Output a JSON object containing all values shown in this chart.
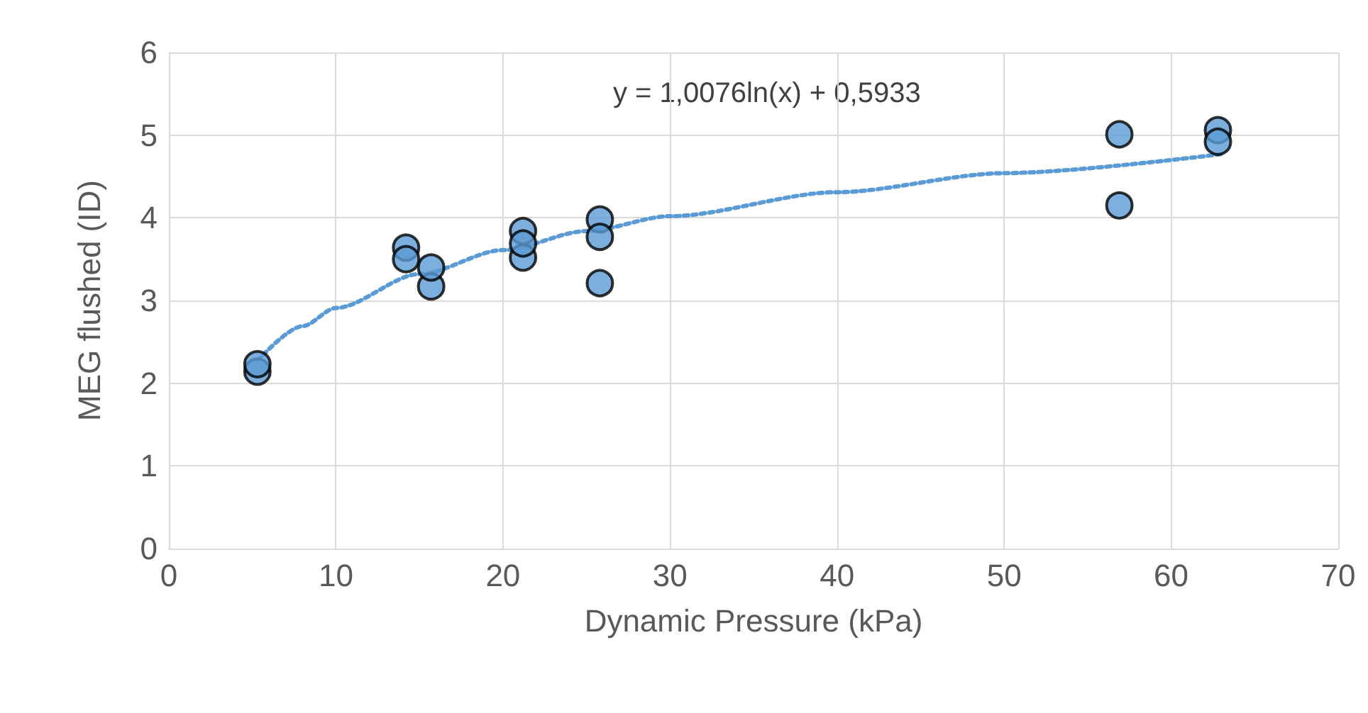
{
  "chart_data": {
    "type": "scatter",
    "xlabel": "Dynamic Pressure (kPa)",
    "ylabel": "MEG flushed (ID)",
    "xlim": [
      0,
      70
    ],
    "xticks": [
      0,
      10,
      20,
      30,
      40,
      50,
      60,
      70
    ],
    "ylim": [
      0,
      6
    ],
    "yticks": [
      0,
      1,
      2,
      3,
      4,
      5,
      6
    ],
    "grid": true,
    "marker": "circle",
    "annotations": [
      "y = 1,0076ln(x) + 0,5933"
    ],
    "series": [
      {
        "color": "#5b9bd5",
        "x": [
          5.3,
          5.3,
          14.2,
          14.2,
          15.7,
          15.7,
          21.2,
          21.2,
          21.2,
          25.8,
          25.8,
          25.8,
          56.9,
          56.9,
          62.8,
          62.8
        ],
        "values": [
          2.14,
          2.23,
          3.64,
          3.5,
          3.17,
          3.4,
          3.52,
          3.84,
          3.69,
          3.98,
          3.77,
          3.21,
          5.01,
          4.15,
          5.06,
          4.92
        ]
      },
      {
        "type": "line",
        "color": "#5b9bd5",
        "line_style": "dotted",
        "marker": "none",
        "x": [
          5.3,
          8,
          10,
          15,
          20,
          25,
          30,
          40,
          50,
          63
        ],
        "values": [
          2.27,
          2.69,
          2.91,
          3.32,
          3.61,
          3.84,
          4.02,
          4.31,
          4.54,
          4.77
        ]
      }
    ]
  }
}
